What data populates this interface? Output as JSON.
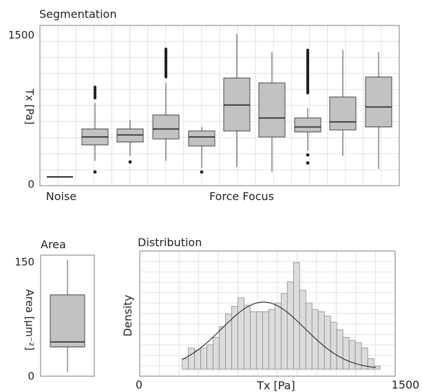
{
  "chart_data": [
    {
      "type": "box",
      "title": "Segmentation",
      "xlabel": "",
      "ylabel": "Tx [Pa]",
      "ylim": [
        0,
        1500
      ],
      "y_tick_labels": [
        "0",
        "1500"
      ],
      "group_labels": [
        "Noise",
        "Force Focus"
      ],
      "grid": true,
      "boxes": [
        {
          "group": "Noise",
          "whislo": 60,
          "q1": 60,
          "med": 60,
          "q3": 60,
          "whishi": 60,
          "outliers_low": [],
          "outliers_high": []
        },
        {
          "group": "Force Focus",
          "whislo": 220,
          "q1": 380,
          "med": 460,
          "q3": 540,
          "whishi": 800,
          "outliers_low": [
            110
          ],
          "outliers_high": [
            850,
            900,
            960
          ]
        },
        {
          "group": "Force Focus",
          "whislo": 270,
          "q1": 410,
          "med": 480,
          "q3": 540,
          "whishi": 630,
          "outliers_low": [
            210
          ],
          "outliers_high": []
        },
        {
          "group": "Force Focus",
          "whislo": 220,
          "q1": 440,
          "med": 540,
          "q3": 680,
          "whishi": 1000,
          "outliers_low": [],
          "outliers_high": [
            1060,
            1150,
            1250,
            1340
          ]
        },
        {
          "group": "Force Focus",
          "whislo": 150,
          "q1": 370,
          "med": 460,
          "q3": 520,
          "whishi": 560,
          "outliers_low": [
            110
          ],
          "outliers_high": []
        },
        {
          "group": "Force Focus",
          "whislo": 160,
          "q1": 520,
          "med": 780,
          "q3": 1050,
          "whishi": 1490,
          "outliers_low": [],
          "outliers_high": []
        },
        {
          "group": "Force Focus",
          "whislo": 110,
          "q1": 460,
          "med": 650,
          "q3": 1000,
          "whishi": 1310,
          "outliers_low": [],
          "outliers_high": []
        },
        {
          "group": "Force Focus",
          "whislo": 320,
          "q1": 510,
          "med": 560,
          "q3": 650,
          "whishi": 750,
          "outliers_low": [
            200,
            280
          ],
          "outliers_high": [
            900,
            1000,
            1100,
            1200,
            1330
          ]
        },
        {
          "group": "Force Focus",
          "whislo": 270,
          "q1": 530,
          "med": 610,
          "q3": 860,
          "whishi": 1330,
          "outliers_low": [],
          "outliers_high": []
        },
        {
          "group": "Force Focus",
          "whislo": 140,
          "q1": 560,
          "med": 760,
          "q3": 1060,
          "whishi": 1310,
          "outliers_low": [],
          "outliers_high": []
        }
      ]
    },
    {
      "type": "box",
      "title": "Area",
      "ylabel": "Area [µm⁻²]",
      "ylim": [
        0,
        160
      ],
      "y_tick_labels": [
        "0",
        "150"
      ],
      "boxes": [
        {
          "whislo": 5,
          "q1": 40,
          "med": 47,
          "q3": 113,
          "whishi": 162,
          "outliers_low": [],
          "outliers_high": []
        }
      ]
    },
    {
      "type": "histogram",
      "title": "Distribution",
      "xlabel": "Tx  [Pa]",
      "ylabel": "Density",
      "xlim": [
        0,
        1500
      ],
      "x_tick_labels": [
        "0",
        "1500"
      ],
      "bin_start": 240,
      "bin_width": 35,
      "counts": [
        10,
        20,
        18,
        20,
        23,
        30,
        40,
        52,
        59,
        67,
        60,
        54,
        54,
        54,
        56,
        62,
        71,
        82,
        100,
        74,
        62,
        56,
        54,
        50,
        44,
        37,
        30,
        27,
        25,
        20,
        10,
        3
      ],
      "ymax": 105,
      "curve": {
        "type": "normal",
        "mean": 700,
        "sd": 235,
        "peak": 63
      },
      "grid": true
    }
  ]
}
